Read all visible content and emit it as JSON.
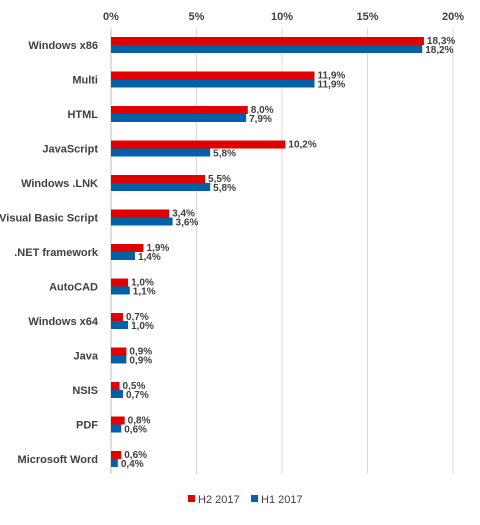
{
  "chart_data": {
    "type": "bar",
    "orientation": "horizontal",
    "categories": [
      "Windows x86",
      "Multi",
      "HTML",
      "JavaScript",
      "Windows .LNK",
      "Visual Basic Script",
      ".NET framework",
      "AutoCAD",
      "Windows x64",
      "Java",
      "NSIS",
      "PDF",
      "Microsoft Word"
    ],
    "series": [
      {
        "name": "H2 2017",
        "color": "#e00000",
        "values": [
          18.3,
          11.9,
          8.0,
          10.2,
          5.5,
          3.4,
          1.9,
          1.0,
          0.7,
          0.9,
          0.5,
          0.8,
          0.6
        ],
        "labels": [
          "18,3%",
          "11,9%",
          "8,0%",
          "10,2%",
          "5,5%",
          "3,4%",
          "1,9%",
          "1,0%",
          "0,7%",
          "0,9%",
          "0,5%",
          "0,8%",
          "0,6%"
        ]
      },
      {
        "name": "H1 2017",
        "color": "#0060a8",
        "values": [
          18.2,
          11.9,
          7.9,
          5.8,
          5.8,
          3.6,
          1.4,
          1.1,
          1.0,
          0.9,
          0.7,
          0.6,
          0.4
        ],
        "labels": [
          "18,2%",
          "11,9%",
          "7,9%",
          "5,8%",
          "5,8%",
          "3,6%",
          "1,4%",
          "1,1%",
          "1,0%",
          "0,9%",
          "0,7%",
          "0,6%",
          "0,4%"
        ]
      }
    ],
    "x_ticks": [
      0,
      5,
      10,
      15,
      20
    ],
    "x_tick_labels": [
      "0%",
      "5%",
      "10%",
      "15%",
      "20%"
    ],
    "xlim": [
      0,
      20
    ],
    "x_axis_position": "top",
    "grid": true,
    "legend": "bottom-center",
    "title": "",
    "xlabel": "",
    "ylabel": ""
  }
}
